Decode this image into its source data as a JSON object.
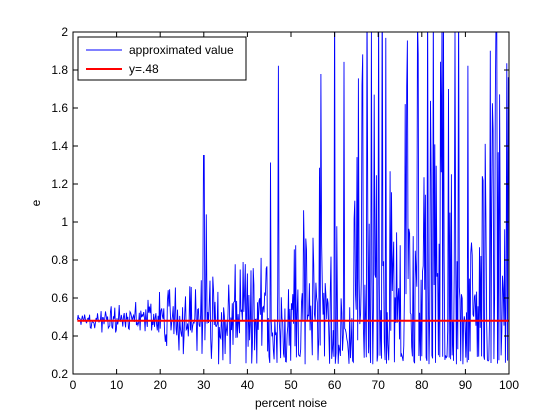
{
  "chart_data": {
    "type": "line",
    "title": "",
    "xlabel": "percent noise",
    "ylabel": "e",
    "xlim": [
      0,
      100
    ],
    "ylim": [
      0.2,
      2
    ],
    "xticks": [
      0,
      10,
      20,
      30,
      40,
      50,
      60,
      70,
      80,
      90,
      100
    ],
    "yticks": [
      0.2,
      0.4,
      0.6,
      0.8,
      1,
      1.2,
      1.4,
      1.6,
      1.8,
      2
    ],
    "ytick_labels": [
      "0.2",
      "0.4",
      "0.6",
      "0.8",
      "1",
      "1.2",
      "1.4",
      "1.6",
      "1.8",
      "2"
    ],
    "grid": false,
    "legend_position": "top-left",
    "series": [
      {
        "name": "approximated value",
        "color": "#0000ff",
        "style": "noisy line around 0.48, amplitude grows with x; isolated spikes near x=30 (1.35) and x=30.5 (1.04); frequent spikes clipped at y=2 for x>42",
        "x_start": 1,
        "x_end": 100,
        "points": 600
      },
      {
        "name": "y=.48",
        "color": "#ff0000",
        "x": [
          1,
          100
        ],
        "y": [
          0.48,
          0.48
        ]
      }
    ]
  }
}
